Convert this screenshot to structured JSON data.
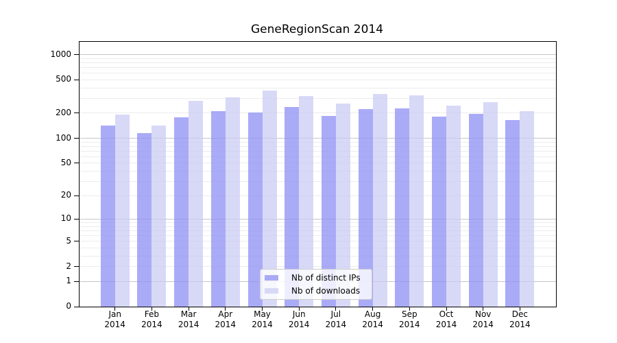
{
  "chart": {
    "title": "GeneRegionScan 2014",
    "background_color": "#ffffff",
    "legend": {
      "entries": [
        "Nb of distinct IPs",
        "Nb of downloads"
      ],
      "position": "lower center"
    }
  },
  "chart_data": {
    "type": "bar",
    "title": "GeneRegionScan 2014",
    "xlabel": "",
    "ylabel": "",
    "categories": [
      "Jan 2014",
      "Feb 2014",
      "Mar 2014",
      "Apr 2014",
      "May 2014",
      "Jun 2014",
      "Jul 2014",
      "Aug 2014",
      "Sep 2014",
      "Oct 2014",
      "Nov 2014",
      "Dec 2014"
    ],
    "months": [
      "Jan",
      "Feb",
      "Mar",
      "Apr",
      "May",
      "Jun",
      "Jul",
      "Aug",
      "Sep",
      "Oct",
      "Nov",
      "Dec"
    ],
    "year": "2014",
    "series": [
      {
        "name": "Nb of distinct IPs",
        "color": "#a9aaf6",
        "values": [
          141,
          116,
          180,
          212,
          205,
          238,
          186,
          226,
          229,
          183,
          198,
          165
        ]
      },
      {
        "name": "Nb of downloads",
        "color": "#d8d9f6",
        "values": [
          191,
          142,
          281,
          307,
          370,
          318,
          263,
          338,
          328,
          244,
          271,
          211
        ]
      }
    ],
    "y_axis": {
      "scale": "log1p",
      "ylim": [
        0,
        1420
      ],
      "ticks": [
        1000,
        500,
        200,
        100,
        50,
        20,
        10,
        5,
        2,
        1,
        0
      ],
      "grid": "horizontal, log minor lines 1-1000, powers of 10 darker"
    },
    "legend_position": "lower center",
    "grid_on": true
  }
}
